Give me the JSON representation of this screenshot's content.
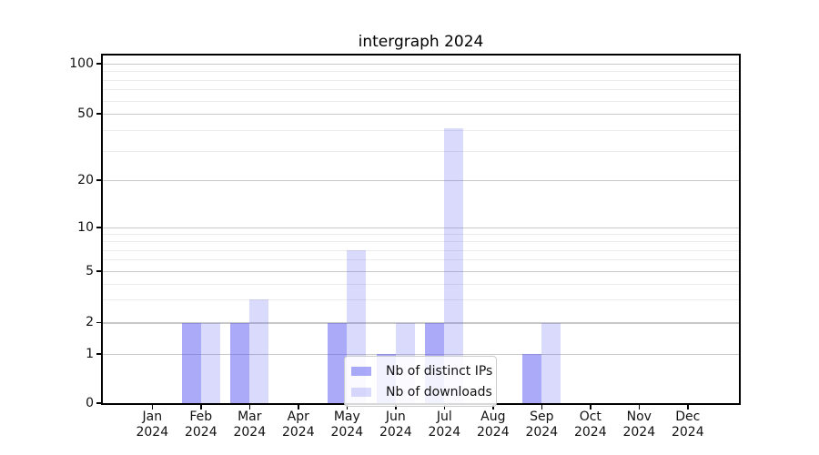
{
  "title": "intergraph 2024",
  "legend": {
    "items": [
      {
        "label": "Nb of distinct IPs"
      },
      {
        "label": "Nb of downloads"
      }
    ]
  },
  "colors": {
    "series_base": "#5555f2",
    "distinct_ips_fill": "rgba(85,85,242,0.5)",
    "downloads_fill": "rgba(85,85,242,0.22)",
    "grid_major": "#c8c8c8",
    "grid_minor": "#ebebeb",
    "spine": "#000000",
    "text": "#111111"
  },
  "chart_data": {
    "type": "bar",
    "title": "intergraph 2024",
    "categories": [
      "Jan 2024",
      "Feb 2024",
      "Mar 2024",
      "Apr 2024",
      "May 2024",
      "Jun 2024",
      "Jul 2024",
      "Aug 2024",
      "Sep 2024",
      "Oct 2024",
      "Nov 2024",
      "Dec 2024"
    ],
    "series": [
      {
        "name": "Nb of distinct IPs",
        "values": [
          0,
          2,
          2,
          0,
          2,
          1,
          2,
          0,
          1,
          0,
          0,
          0
        ]
      },
      {
        "name": "Nb of downloads",
        "values": [
          0,
          2,
          3,
          0,
          7,
          2,
          41,
          0,
          2,
          0,
          0,
          0
        ]
      }
    ],
    "xlabel": "",
    "ylabel": "",
    "yscale": "symlog",
    "yticks": [
      0,
      1,
      2,
      5,
      10,
      20,
      50,
      100
    ],
    "minor_yticks": [
      3,
      4,
      6,
      7,
      8,
      9,
      30,
      40,
      60,
      70,
      80,
      90
    ],
    "ylim": [
      0,
      112
    ],
    "grid": true,
    "legend_position": "lower center"
  }
}
